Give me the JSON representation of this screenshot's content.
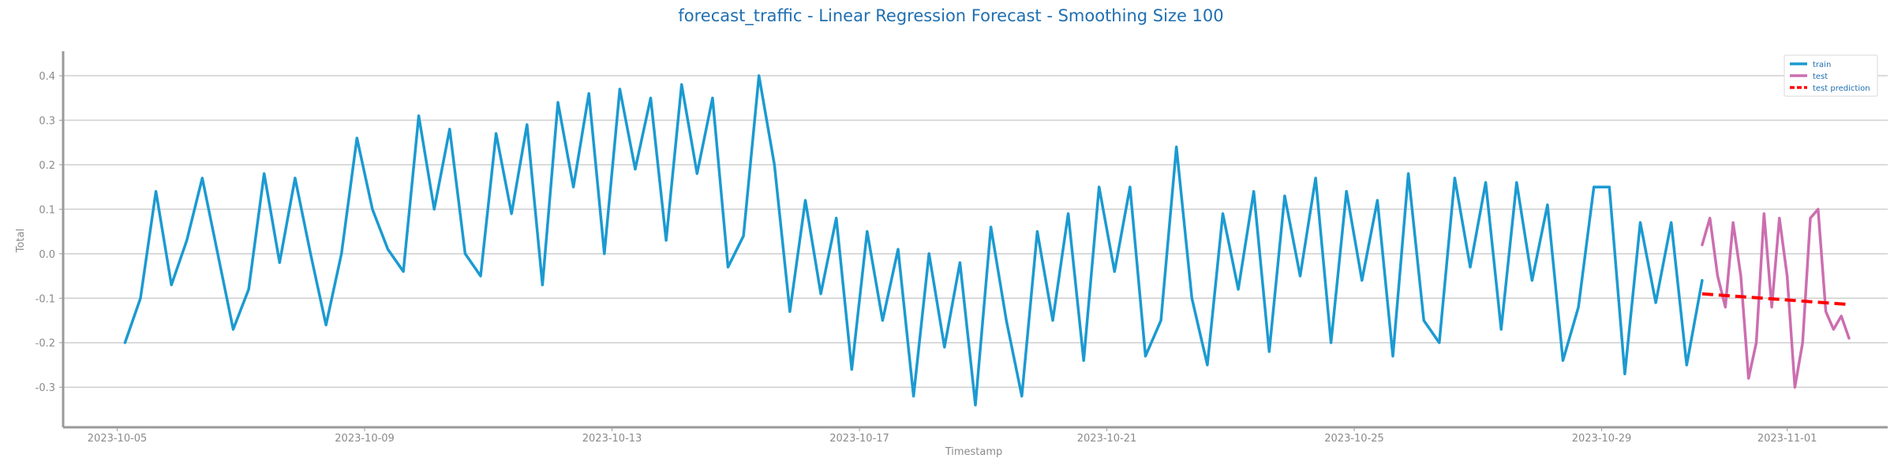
{
  "chart_data": {
    "type": "line",
    "title": "forecast_traffic - Linear Regression Forecast - Smoothing Size 100",
    "xlabel": "Timestamp",
    "ylabel": "Total",
    "xlim": [
      "2023-10-04T03:00",
      "2023-11-02T15:00"
    ],
    "ylim": [
      -0.39,
      0.455
    ],
    "x_ticks": [
      "2023-10-05",
      "2023-10-09",
      "2023-10-13",
      "2023-10-17",
      "2023-10-21",
      "2023-10-25",
      "2023-10-29",
      "2023-11-01"
    ],
    "y_ticks": [
      -0.3,
      -0.2,
      -0.1,
      0.0,
      0.1,
      0.2,
      0.3,
      0.4
    ],
    "grid": "horizontal",
    "legend_position": "top-right",
    "series": [
      {
        "name": "train",
        "color": "#1b9ad1",
        "style": "solid",
        "points": [
          [
            "2023-10-05T03:00",
            -0.2
          ],
          [
            "2023-10-05T09:00",
            -0.1
          ],
          [
            "2023-10-05T15:00",
            0.14
          ],
          [
            "2023-10-05T21:00",
            -0.07
          ],
          [
            "2023-10-06T03:00",
            0.03
          ],
          [
            "2023-10-06T09:00",
            0.17
          ],
          [
            "2023-10-06T15:00",
            0.0
          ],
          [
            "2023-10-06T21:00",
            -0.17
          ],
          [
            "2023-10-07T03:00",
            -0.08
          ],
          [
            "2023-10-07T09:00",
            0.18
          ],
          [
            "2023-10-07T15:00",
            -0.02
          ],
          [
            "2023-10-07T21:00",
            0.17
          ],
          [
            "2023-10-08T03:00",
            0.0
          ],
          [
            "2023-10-08T09:00",
            -0.16
          ],
          [
            "2023-10-08T15:00",
            0.0
          ],
          [
            "2023-10-08T21:00",
            0.26
          ],
          [
            "2023-10-09T03:00",
            0.1
          ],
          [
            "2023-10-09T09:00",
            0.01
          ],
          [
            "2023-10-09T15:00",
            -0.04
          ],
          [
            "2023-10-09T21:00",
            0.31
          ],
          [
            "2023-10-10T03:00",
            0.1
          ],
          [
            "2023-10-10T09:00",
            0.28
          ],
          [
            "2023-10-10T15:00",
            0.0
          ],
          [
            "2023-10-10T21:00",
            -0.05
          ],
          [
            "2023-10-11T03:00",
            0.27
          ],
          [
            "2023-10-11T09:00",
            0.09
          ],
          [
            "2023-10-11T15:00",
            0.29
          ],
          [
            "2023-10-11T21:00",
            -0.07
          ],
          [
            "2023-10-12T03:00",
            0.34
          ],
          [
            "2023-10-12T09:00",
            0.15
          ],
          [
            "2023-10-12T15:00",
            0.36
          ],
          [
            "2023-10-12T21:00",
            0.0
          ],
          [
            "2023-10-13T03:00",
            0.37
          ],
          [
            "2023-10-13T09:00",
            0.19
          ],
          [
            "2023-10-13T15:00",
            0.35
          ],
          [
            "2023-10-13T21:00",
            0.03
          ],
          [
            "2023-10-14T03:00",
            0.38
          ],
          [
            "2023-10-14T09:00",
            0.18
          ],
          [
            "2023-10-14T15:00",
            0.35
          ],
          [
            "2023-10-14T21:00",
            -0.03
          ],
          [
            "2023-10-15T03:00",
            0.04
          ],
          [
            "2023-10-15T09:00",
            0.4
          ],
          [
            "2023-10-15T15:00",
            0.2
          ],
          [
            "2023-10-15T21:00",
            -0.13
          ],
          [
            "2023-10-16T03:00",
            0.12
          ],
          [
            "2023-10-16T09:00",
            -0.09
          ],
          [
            "2023-10-16T15:00",
            0.08
          ],
          [
            "2023-10-16T21:00",
            -0.26
          ],
          [
            "2023-10-17T03:00",
            0.05
          ],
          [
            "2023-10-17T09:00",
            -0.15
          ],
          [
            "2023-10-17T15:00",
            0.01
          ],
          [
            "2023-10-17T21:00",
            -0.32
          ],
          [
            "2023-10-18T03:00",
            0.0
          ],
          [
            "2023-10-18T09:00",
            -0.21
          ],
          [
            "2023-10-18T15:00",
            -0.02
          ],
          [
            "2023-10-18T21:00",
            -0.34
          ],
          [
            "2023-10-19T03:00",
            0.06
          ],
          [
            "2023-10-19T09:00",
            -0.15
          ],
          [
            "2023-10-19T15:00",
            -0.32
          ],
          [
            "2023-10-19T21:00",
            0.05
          ],
          [
            "2023-10-20T03:00",
            -0.15
          ],
          [
            "2023-10-20T09:00",
            0.09
          ],
          [
            "2023-10-20T15:00",
            -0.24
          ],
          [
            "2023-10-20T21:00",
            0.15
          ],
          [
            "2023-10-21T03:00",
            -0.04
          ],
          [
            "2023-10-21T09:00",
            0.15
          ],
          [
            "2023-10-21T15:00",
            -0.23
          ],
          [
            "2023-10-21T21:00",
            -0.15
          ],
          [
            "2023-10-22T03:00",
            0.24
          ],
          [
            "2023-10-22T09:00",
            -0.1
          ],
          [
            "2023-10-22T15:00",
            -0.25
          ],
          [
            "2023-10-22T21:00",
            0.09
          ],
          [
            "2023-10-23T03:00",
            -0.08
          ],
          [
            "2023-10-23T09:00",
            0.14
          ],
          [
            "2023-10-23T15:00",
            -0.22
          ],
          [
            "2023-10-23T21:00",
            0.13
          ],
          [
            "2023-10-24T03:00",
            -0.05
          ],
          [
            "2023-10-24T09:00",
            0.17
          ],
          [
            "2023-10-24T15:00",
            -0.2
          ],
          [
            "2023-10-24T21:00",
            0.14
          ],
          [
            "2023-10-25T03:00",
            -0.06
          ],
          [
            "2023-10-25T09:00",
            0.12
          ],
          [
            "2023-10-25T15:00",
            -0.23
          ],
          [
            "2023-10-25T21:00",
            0.18
          ],
          [
            "2023-10-26T03:00",
            -0.15
          ],
          [
            "2023-10-26T09:00",
            -0.2
          ],
          [
            "2023-10-26T15:00",
            0.17
          ],
          [
            "2023-10-26T21:00",
            -0.03
          ],
          [
            "2023-10-27T03:00",
            0.16
          ],
          [
            "2023-10-27T09:00",
            -0.17
          ],
          [
            "2023-10-27T15:00",
            0.16
          ],
          [
            "2023-10-27T21:00",
            -0.06
          ],
          [
            "2023-10-28T03:00",
            0.11
          ],
          [
            "2023-10-28T09:00",
            -0.24
          ],
          [
            "2023-10-28T15:00",
            -0.12
          ],
          [
            "2023-10-28T21:00",
            0.15
          ],
          [
            "2023-10-29T03:00",
            0.15
          ],
          [
            "2023-10-29T09:00",
            -0.27
          ],
          [
            "2023-10-29T15:00",
            0.07
          ],
          [
            "2023-10-29T21:00",
            -0.11
          ],
          [
            "2023-10-30T03:00",
            0.07
          ],
          [
            "2023-10-30T09:00",
            -0.25
          ],
          [
            "2023-10-30T15:00",
            -0.06
          ]
        ]
      },
      {
        "name": "test",
        "color": "#cc6eb0",
        "style": "solid",
        "points": [
          [
            "2023-10-30T15:00",
            0.02
          ],
          [
            "2023-10-30T18:00",
            0.08
          ],
          [
            "2023-10-30T21:00",
            -0.05
          ],
          [
            "2023-10-31T00:00",
            -0.12
          ],
          [
            "2023-10-31T03:00",
            0.07
          ],
          [
            "2023-10-31T06:00",
            -0.05
          ],
          [
            "2023-10-31T09:00",
            -0.28
          ],
          [
            "2023-10-31T12:00",
            -0.2
          ],
          [
            "2023-10-31T15:00",
            0.09
          ],
          [
            "2023-10-31T18:00",
            -0.12
          ],
          [
            "2023-10-31T21:00",
            0.08
          ],
          [
            "2023-11-01T00:00",
            -0.05
          ],
          [
            "2023-11-01T03:00",
            -0.3
          ],
          [
            "2023-11-01T06:00",
            -0.2
          ],
          [
            "2023-11-01T09:00",
            0.08
          ],
          [
            "2023-11-01T12:00",
            0.1
          ],
          [
            "2023-11-01T15:00",
            -0.13
          ],
          [
            "2023-11-01T18:00",
            -0.17
          ],
          [
            "2023-11-01T21:00",
            -0.14
          ],
          [
            "2023-11-02T00:00",
            -0.19
          ]
        ]
      },
      {
        "name": "test prediction",
        "color": "#ff0000",
        "style": "dashed",
        "points": [
          [
            "2023-10-30T15:00",
            -0.09
          ],
          [
            "2023-11-02T00:00",
            -0.114
          ]
        ]
      }
    ]
  }
}
